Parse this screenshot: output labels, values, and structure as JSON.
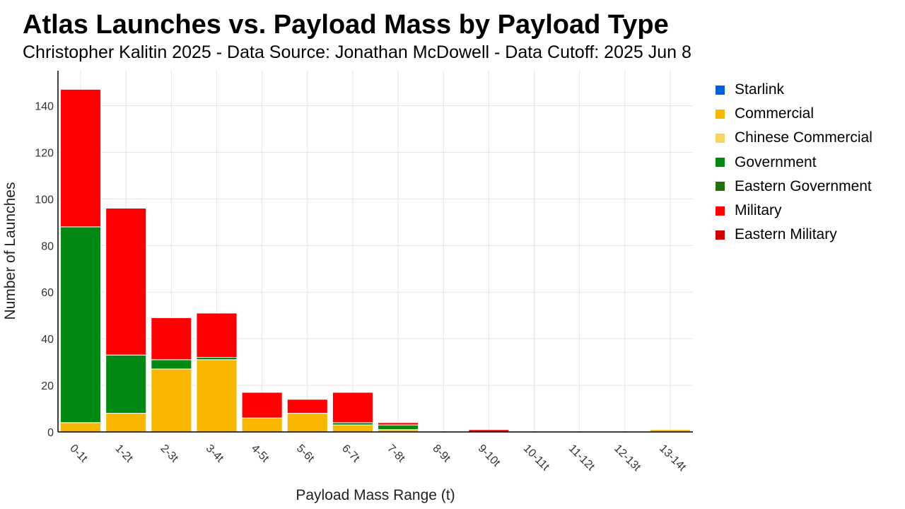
{
  "title": "Atlas Launches vs. Payload Mass by Payload Type",
  "subtitle": "Christopher Kalitin 2025 - Data Source: Jonathan McDowell - Data Cutoff: 2025 Jun 8",
  "chart_data": {
    "type": "bar",
    "stacked": true,
    "title": "Atlas Launches vs. Payload Mass by Payload Type",
    "subtitle": "Christopher Kalitin 2025 - Data Source: Jonathan McDowell - Data Cutoff: 2025 Jun 8",
    "xlabel": "Payload Mass Range (t)",
    "ylabel": "Number of Launches",
    "ylim": [
      0,
      155
    ],
    "yticks": [
      0,
      20,
      40,
      60,
      80,
      100,
      120,
      140
    ],
    "grid": true,
    "legend_position": "right",
    "categories": [
      "0-1t",
      "1-2t",
      "2-3t",
      "3-4t",
      "4-5t",
      "5-6t",
      "6-7t",
      "7-8t",
      "8-9t",
      "9-10t",
      "10-11t",
      "11-12t",
      "12-13t",
      "13-14t"
    ],
    "series": [
      {
        "name": "Starlink",
        "color": "#005fe0",
        "values": [
          0,
          0,
          0,
          0,
          0,
          0,
          0,
          0,
          0,
          0,
          0,
          0,
          0,
          0
        ]
      },
      {
        "name": "Commercial",
        "color": "#fab700",
        "values": [
          4,
          8,
          27,
          31,
          6,
          8,
          3,
          1,
          0,
          0,
          0,
          0,
          0,
          1
        ]
      },
      {
        "name": "Chinese Commercial",
        "color": "#f8d35e",
        "values": [
          0,
          0,
          0,
          0,
          0,
          0,
          0,
          0,
          0,
          0,
          0,
          0,
          0,
          0
        ]
      },
      {
        "name": "Government",
        "color": "#008a13",
        "values": [
          84,
          25,
          4,
          1,
          0,
          0,
          1,
          2,
          0,
          0,
          0,
          0,
          0,
          0
        ]
      },
      {
        "name": "Eastern Government",
        "color": "#23710e",
        "values": [
          0,
          0,
          0,
          0,
          0,
          0,
          0,
          0,
          0,
          0,
          0,
          0,
          0,
          0
        ]
      },
      {
        "name": "Military",
        "color": "#ff0000",
        "values": [
          59,
          63,
          18,
          19,
          11,
          6,
          13,
          1,
          0,
          1,
          0,
          0,
          0,
          0
        ]
      },
      {
        "name": "Eastern Military",
        "color": "#d00000",
        "values": [
          0,
          0,
          0,
          0,
          0,
          0,
          0,
          0,
          0,
          0,
          0,
          0,
          0,
          0
        ]
      }
    ]
  }
}
